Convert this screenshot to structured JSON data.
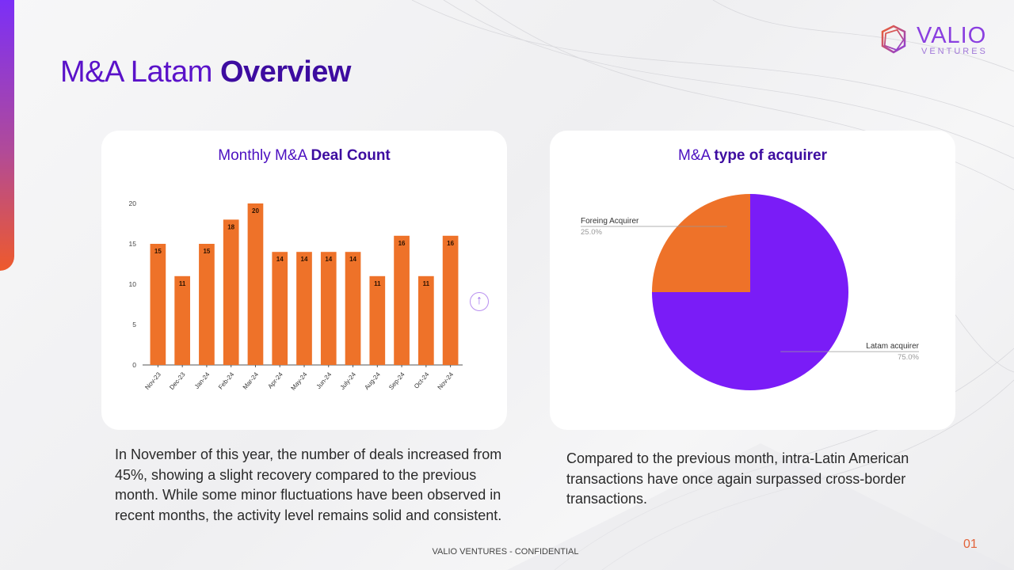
{
  "title": {
    "regular": "M&A Latam ",
    "bold": "Overview"
  },
  "logo": {
    "name": "VALIO",
    "sub": "VENTURES"
  },
  "colors": {
    "accent": "#5a12c9",
    "bar": "#ee7229",
    "latam": "#7a1cf7",
    "foreign": "#ee7229",
    "gradient_top": "#7b2ff7",
    "gradient_bottom": "#ee5a2c"
  },
  "left_card": {
    "title_regular": "Monthly M&A ",
    "title_bold": "Deal Count"
  },
  "right_card": {
    "title_regular": "M&A ",
    "title_bold": "type of acquirer"
  },
  "icons": {
    "scroll": "arrow-up-circle-icon"
  },
  "scroll_glyph": "↑",
  "chart_data": [
    {
      "type": "bar",
      "title": "Monthly M&A Deal Count",
      "categories": [
        "Nov-23",
        "Dec-23",
        "Jan-24",
        "Feb-24",
        "Mar-24",
        "Apr-24",
        "May-24",
        "Jun-24",
        "July-24",
        "Aug-24",
        "Sep-24",
        "Oct-24",
        "Nov-24"
      ],
      "values": [
        15,
        11,
        15,
        18,
        20,
        14,
        14,
        14,
        14,
        11,
        16,
        11,
        16
      ],
      "ylim": [
        0,
        20
      ],
      "yticks": [
        0,
        5,
        10,
        15,
        20
      ],
      "xlabel": "",
      "ylabel": "",
      "data_labels": true,
      "grid": false
    },
    {
      "type": "pie",
      "title": "M&A type of acquirer",
      "slices": [
        {
          "label": "Latam acquirer",
          "value": 75.0,
          "display": "75.0%"
        },
        {
          "label": "Foreing Acquirer",
          "value": 25.0,
          "display": "25.0%"
        }
      ]
    }
  ],
  "paragraphs": {
    "left": "In November of this year, the number of deals increased from 45%, showing a slight recovery compared to the previous month. While some minor fluctuations have been observed in recent months, the activity level remains solid and consistent.",
    "right": "Compared to the previous month, intra-Latin American transactions have once again surpassed cross-border transactions."
  },
  "footer": "VALIO VENTURES - CONFIDENTIAL",
  "page_number": "01"
}
